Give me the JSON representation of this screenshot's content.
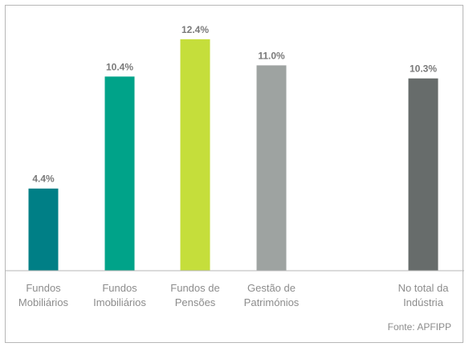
{
  "chart_data": {
    "type": "bar",
    "categories": [
      [
        "Fundos",
        "Mobiliários"
      ],
      [
        "Fundos",
        "Imobiliários"
      ],
      [
        "Fundos de",
        "Pensões"
      ],
      [
        "Gestão de",
        "Patrimónios"
      ],
      [
        "No total da",
        "Indústria"
      ]
    ],
    "values": [
      4.4,
      10.4,
      12.4,
      11.0,
      10.3
    ],
    "value_labels": [
      "4.4%",
      "10.4%",
      "12.4%",
      "11.0%",
      "10.3%"
    ],
    "colors": [
      "#007f86",
      "#00a389",
      "#c5de3b",
      "#9ea3a1",
      "#676c6b"
    ],
    "ylim": [
      0,
      14.2
    ],
    "grid": false,
    "legend": "none",
    "title": "",
    "xlabel": "",
    "ylabel": ""
  },
  "source": "Fonte: APFIPP"
}
